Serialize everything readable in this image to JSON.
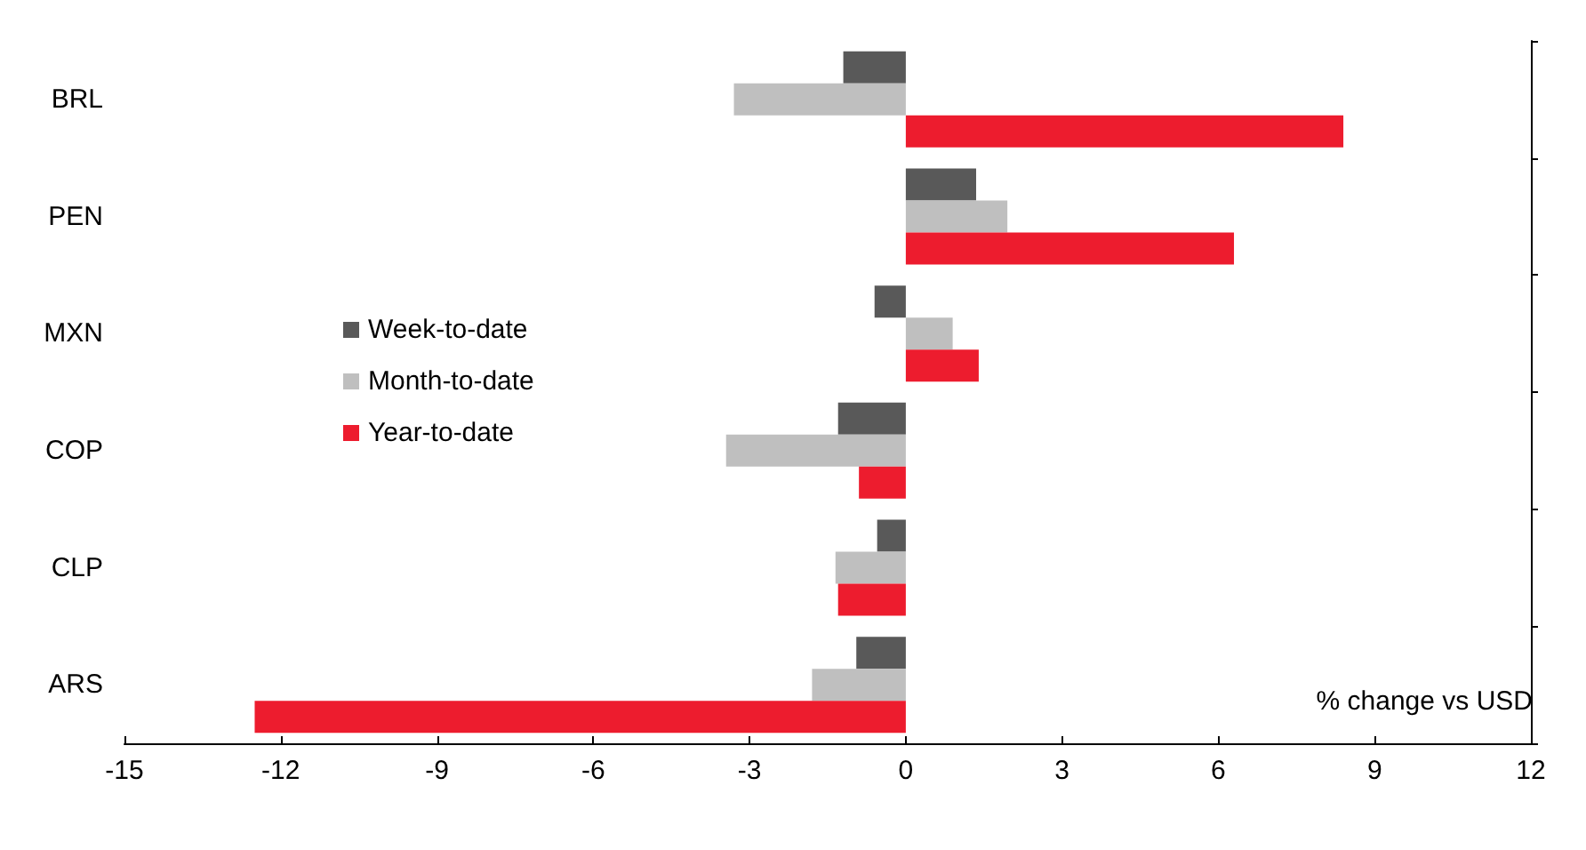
{
  "chart_data": {
    "type": "bar",
    "orientation": "horizontal",
    "categories": [
      "BRL",
      "PEN",
      "MXN",
      "COP",
      "CLP",
      "ARS"
    ],
    "series": [
      {
        "name": "Week-to-date",
        "color": "#595959",
        "values": [
          -1.2,
          1.35,
          -0.6,
          -1.3,
          -0.55,
          -0.95
        ]
      },
      {
        "name": "Month-to-date",
        "color": "#bfbfbf",
        "values": [
          -3.3,
          1.95,
          0.9,
          -3.45,
          -1.35,
          -1.8
        ]
      },
      {
        "name": "Year-to-date",
        "color": "#ed1c2e",
        "values": [
          8.4,
          6.3,
          1.4,
          -0.9,
          -1.3,
          -12.5
        ]
      }
    ],
    "xlim": [
      -15,
      12
    ],
    "xticks": [
      -15,
      -12,
      -9,
      -6,
      -3,
      0,
      3,
      6,
      9,
      12
    ],
    "legend": "left",
    "grid": false,
    "annotations": [
      "% change vs USD"
    ]
  }
}
